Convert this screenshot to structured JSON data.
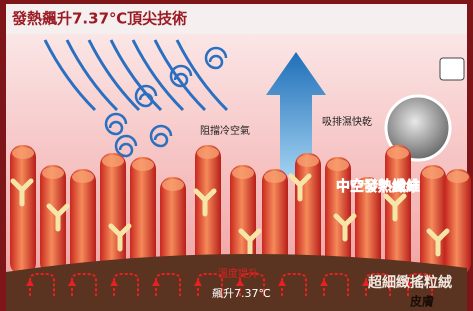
{
  "header": {
    "title": "發熱飆升7.37℃頂尖技術"
  },
  "labels": {
    "block_cold": "阻擋冷空氣",
    "wick_dry": "吸排濕快乾",
    "hollow_fiber": "中空發熱纖維",
    "warm_up": "溫度提升",
    "rise": "飆升7.37℃",
    "fleece": "超細緻搖粒絨",
    "skin": "皮膚"
  }
}
